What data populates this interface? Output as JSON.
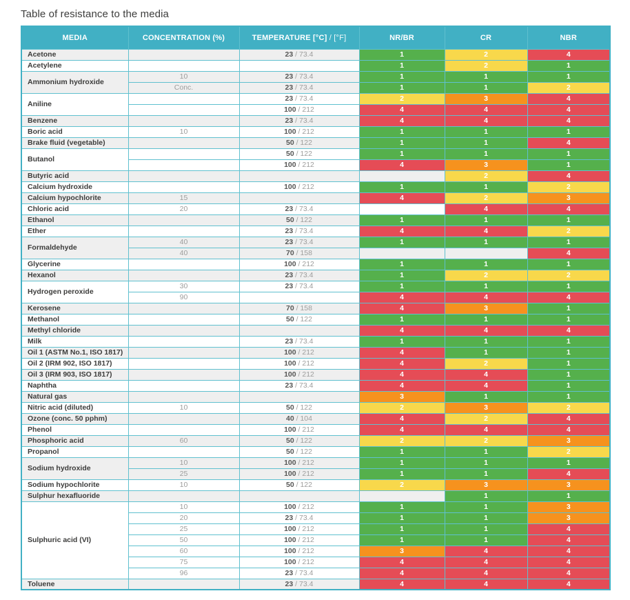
{
  "title": "Table of resistance to the media",
  "table": {
    "columns": {
      "media": "MEDIA",
      "concentration": "CONCENTRATION (%)",
      "temperature_main": "TEMPERATURE [°C]",
      "temperature_suffix": "/ [°F]",
      "materials": [
        "NR/BR",
        "CR",
        "NBR"
      ]
    },
    "rating_colors": {
      "1": "#55b04c",
      "2": "#f8d84b",
      "3": "#f6921e",
      "4": "#e54c56"
    },
    "header_color": "#41b0c4",
    "stripe_color": "#efefef",
    "groups": [
      {
        "media": "Acetone",
        "rows": [
          {
            "concentration": "",
            "temp_c": "23",
            "temp_f": "73.4",
            "ratings": [
              1,
              2,
              4
            ]
          }
        ]
      },
      {
        "media": "Acetylene",
        "rows": [
          {
            "concentration": "",
            "temp_c": "",
            "temp_f": "",
            "ratings": [
              1,
              2,
              1
            ]
          }
        ]
      },
      {
        "media": "Ammonium hydroxide",
        "rows": [
          {
            "concentration": "10",
            "temp_c": "23",
            "temp_f": "73.4",
            "ratings": [
              1,
              1,
              1
            ]
          },
          {
            "concentration": "Conc.",
            "temp_c": "23",
            "temp_f": "73.4",
            "ratings": [
              1,
              1,
              2
            ]
          }
        ]
      },
      {
        "media": "Aniline",
        "rows": [
          {
            "concentration": "",
            "temp_c": "23",
            "temp_f": "73.4",
            "ratings": [
              2,
              3,
              4
            ]
          },
          {
            "concentration": "",
            "temp_c": "100",
            "temp_f": "212",
            "ratings": [
              4,
              4,
              4
            ]
          }
        ]
      },
      {
        "media": "Benzene",
        "rows": [
          {
            "concentration": "",
            "temp_c": "23",
            "temp_f": "73.4",
            "ratings": [
              4,
              4,
              4
            ]
          }
        ]
      },
      {
        "media": "Boric acid",
        "rows": [
          {
            "concentration": "10",
            "temp_c": "100",
            "temp_f": "212",
            "ratings": [
              1,
              1,
              1
            ]
          }
        ]
      },
      {
        "media": "Brake fluid (vegetable)",
        "rows": [
          {
            "concentration": "",
            "temp_c": "50",
            "temp_f": "122",
            "ratings": [
              1,
              1,
              4
            ]
          }
        ]
      },
      {
        "media": "Butanol",
        "rows": [
          {
            "concentration": "",
            "temp_c": "50",
            "temp_f": "122",
            "ratings": [
              1,
              1,
              1
            ]
          },
          {
            "concentration": "",
            "temp_c": "100",
            "temp_f": "212",
            "ratings": [
              4,
              3,
              1
            ]
          }
        ]
      },
      {
        "media": "Butyric acid",
        "rows": [
          {
            "concentration": "",
            "temp_c": "",
            "temp_f": "",
            "ratings": [
              null,
              2,
              4
            ]
          }
        ]
      },
      {
        "media": "Calcium hydroxide",
        "rows": [
          {
            "concentration": "",
            "temp_c": "100",
            "temp_f": "212",
            "ratings": [
              1,
              1,
              2
            ]
          }
        ]
      },
      {
        "media": "Calcium hypochlorite",
        "rows": [
          {
            "concentration": "15",
            "temp_c": "",
            "temp_f": "",
            "ratings": [
              4,
              2,
              3
            ]
          }
        ]
      },
      {
        "media": "Chloric acid",
        "rows": [
          {
            "concentration": "20",
            "temp_c": "23",
            "temp_f": "73.4",
            "ratings": [
              null,
              4,
              4
            ]
          }
        ]
      },
      {
        "media": "Ethanol",
        "rows": [
          {
            "concentration": "",
            "temp_c": "50",
            "temp_f": "122",
            "ratings": [
              1,
              1,
              1
            ]
          }
        ]
      },
      {
        "media": "Ether",
        "rows": [
          {
            "concentration": "",
            "temp_c": "23",
            "temp_f": "73.4",
            "ratings": [
              4,
              4,
              2
            ]
          }
        ]
      },
      {
        "media": "Formaldehyde",
        "rows": [
          {
            "concentration": "40",
            "temp_c": "23",
            "temp_f": "73.4",
            "ratings": [
              1,
              1,
              1
            ]
          },
          {
            "concentration": "40",
            "temp_c": "70",
            "temp_f": "158",
            "ratings": [
              null,
              null,
              4
            ]
          }
        ]
      },
      {
        "media": "Glycerine",
        "rows": [
          {
            "concentration": "",
            "temp_c": "100",
            "temp_f": "212",
            "ratings": [
              1,
              1,
              1
            ]
          }
        ]
      },
      {
        "media": "Hexanol",
        "rows": [
          {
            "concentration": "",
            "temp_c": "23",
            "temp_f": "73.4",
            "ratings": [
              1,
              2,
              2
            ]
          }
        ]
      },
      {
        "media": "Hydrogen peroxide",
        "rows": [
          {
            "concentration": "30",
            "temp_c": "23",
            "temp_f": "73.4",
            "ratings": [
              1,
              1,
              1
            ]
          },
          {
            "concentration": "90",
            "temp_c": "",
            "temp_f": "",
            "ratings": [
              4,
              4,
              4
            ]
          }
        ]
      },
      {
        "media": "Kerosene",
        "rows": [
          {
            "concentration": "",
            "temp_c": "70",
            "temp_f": "158",
            "ratings": [
              4,
              3,
              1
            ]
          }
        ]
      },
      {
        "media": "Methanol",
        "rows": [
          {
            "concentration": "",
            "temp_c": "50",
            "temp_f": "122",
            "ratings": [
              1,
              1,
              1
            ]
          }
        ]
      },
      {
        "media": "Methyl chloride",
        "rows": [
          {
            "concentration": "",
            "temp_c": "",
            "temp_f": "",
            "ratings": [
              4,
              4,
              4
            ]
          }
        ]
      },
      {
        "media": "Milk",
        "rows": [
          {
            "concentration": "",
            "temp_c": "23",
            "temp_f": "73.4",
            "ratings": [
              1,
              1,
              1
            ]
          }
        ]
      },
      {
        "media": "Oil 1 (ASTM No.1, ISO 1817)",
        "rows": [
          {
            "concentration": "",
            "temp_c": "100",
            "temp_f": "212",
            "ratings": [
              4,
              1,
              1
            ]
          }
        ]
      },
      {
        "media": "Oil 2 (IRM 902, ISO 1817)",
        "rows": [
          {
            "concentration": "",
            "temp_c": "100",
            "temp_f": "212",
            "ratings": [
              4,
              2,
              1
            ]
          }
        ]
      },
      {
        "media": "Oil 3 (IRM 903, ISO 1817)",
        "rows": [
          {
            "concentration": "",
            "temp_c": "100",
            "temp_f": "212",
            "ratings": [
              4,
              4,
              1
            ]
          }
        ]
      },
      {
        "media": "Naphtha",
        "rows": [
          {
            "concentration": "",
            "temp_c": "23",
            "temp_f": "73.4",
            "ratings": [
              4,
              4,
              1
            ]
          }
        ]
      },
      {
        "media": "Natural gas",
        "rows": [
          {
            "concentration": "",
            "temp_c": "",
            "temp_f": "",
            "ratings": [
              3,
              1,
              1
            ]
          }
        ]
      },
      {
        "media": "Nitric acid (diluted)",
        "rows": [
          {
            "concentration": "10",
            "temp_c": "50",
            "temp_f": "122",
            "ratings": [
              2,
              3,
              2
            ]
          }
        ]
      },
      {
        "media": "Ozone (conc. 50 pphm)",
        "rows": [
          {
            "concentration": "",
            "temp_c": "40",
            "temp_f": "104",
            "ratings": [
              4,
              2,
              4
            ]
          }
        ]
      },
      {
        "media": "Phenol",
        "rows": [
          {
            "concentration": "",
            "temp_c": "100",
            "temp_f": "212",
            "ratings": [
              4,
              4,
              4
            ]
          }
        ]
      },
      {
        "media": "Phosphoric acid",
        "rows": [
          {
            "concentration": "60",
            "temp_c": "50",
            "temp_f": "122",
            "ratings": [
              2,
              2,
              3
            ]
          }
        ]
      },
      {
        "media": "Propanol",
        "rows": [
          {
            "concentration": "",
            "temp_c": "50",
            "temp_f": "122",
            "ratings": [
              1,
              1,
              2
            ]
          }
        ]
      },
      {
        "media": "Sodium hydroxide",
        "rows": [
          {
            "concentration": "10",
            "temp_c": "100",
            "temp_f": "212",
            "ratings": [
              1,
              1,
              1
            ]
          },
          {
            "concentration": "25",
            "temp_c": "100",
            "temp_f": "212",
            "ratings": [
              1,
              1,
              4
            ]
          }
        ]
      },
      {
        "media": "Sodium hypochlorite",
        "rows": [
          {
            "concentration": "10",
            "temp_c": "50",
            "temp_f": "122",
            "ratings": [
              2,
              3,
              3
            ]
          }
        ]
      },
      {
        "media": "Sulphur hexafluoride",
        "rows": [
          {
            "concentration": "",
            "temp_c": "",
            "temp_f": "",
            "ratings": [
              null,
              1,
              1
            ]
          }
        ]
      },
      {
        "media": "Sulphuric acid (VI)",
        "rows": [
          {
            "concentration": "10",
            "temp_c": "100",
            "temp_f": "212",
            "ratings": [
              1,
              1,
              3
            ]
          },
          {
            "concentration": "20",
            "temp_c": "23",
            "temp_f": "73.4",
            "ratings": [
              1,
              1,
              3
            ]
          },
          {
            "concentration": "25",
            "temp_c": "100",
            "temp_f": "212",
            "ratings": [
              1,
              1,
              4
            ]
          },
          {
            "concentration": "50",
            "temp_c": "100",
            "temp_f": "212",
            "ratings": [
              1,
              1,
              4
            ]
          },
          {
            "concentration": "60",
            "temp_c": "100",
            "temp_f": "212",
            "ratings": [
              3,
              4,
              4
            ]
          },
          {
            "concentration": "75",
            "temp_c": "100",
            "temp_f": "212",
            "ratings": [
              4,
              4,
              4
            ]
          },
          {
            "concentration": "96",
            "temp_c": "23",
            "temp_f": "73.4",
            "ratings": [
              4,
              4,
              4
            ]
          }
        ]
      },
      {
        "media": "Toluene",
        "rows": [
          {
            "concentration": "",
            "temp_c": "23",
            "temp_f": "73.4",
            "ratings": [
              4,
              4,
              4
            ]
          }
        ]
      }
    ]
  }
}
